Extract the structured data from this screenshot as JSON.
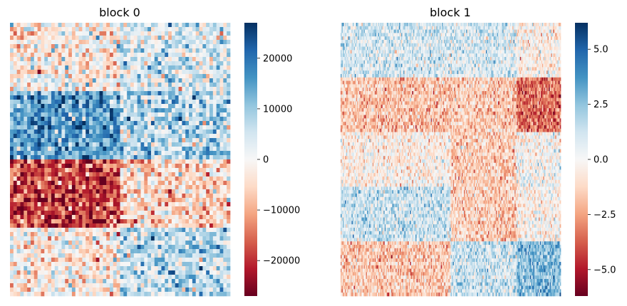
{
  "chart_data": [
    {
      "type": "heatmap",
      "title": "block 0",
      "xlabel": "",
      "ylabel": "",
      "colormap": "RdBu",
      "vlim": [
        -27000,
        27000
      ],
      "colorbar_ticks": [
        20000,
        10000,
        0,
        -10000,
        -20000
      ],
      "colorbar_tick_labels": [
        "20000",
        "10000",
        "0",
        "−10000",
        "−20000"
      ],
      "grid": {
        "rows": 64,
        "cols": 64
      },
      "row_bands": [
        0,
        16,
        32,
        48,
        64
      ],
      "col_bands": [
        0,
        32,
        64
      ],
      "block_means": [
        [
          -2000,
          4500
        ],
        [
          16000,
          8000
        ],
        [
          -18000,
          -5000
        ],
        [
          -2000,
          7000
        ]
      ],
      "noise": 6500,
      "axes_visible": false
    },
    {
      "type": "heatmap",
      "title": "block 1",
      "xlabel": "",
      "ylabel": "",
      "colormap": "RdBu",
      "vlim": [
        -6.2,
        6.2
      ],
      "colorbar_ticks": [
        5.0,
        2.5,
        0.0,
        -2.5,
        -5.0
      ],
      "colorbar_tick_labels": [
        "5.0",
        "2.5",
        "0.0",
        "−2.5",
        "−5.0"
      ],
      "grid": {
        "rows": 80,
        "cols": 200
      },
      "row_bands": [
        0,
        16,
        32,
        48,
        64,
        80
      ],
      "col_bands": [
        0,
        100,
        160,
        200
      ],
      "block_means": [
        [
          1.0,
          1.0,
          -0.3
        ],
        [
          -1.7,
          -1.5,
          -3.5
        ],
        [
          -0.4,
          -1.5,
          0.0
        ],
        [
          1.3,
          -1.5,
          -0.2
        ],
        [
          -1.6,
          1.3,
          2.6
        ]
      ],
      "noise": 1.1,
      "axes_visible": false
    }
  ]
}
